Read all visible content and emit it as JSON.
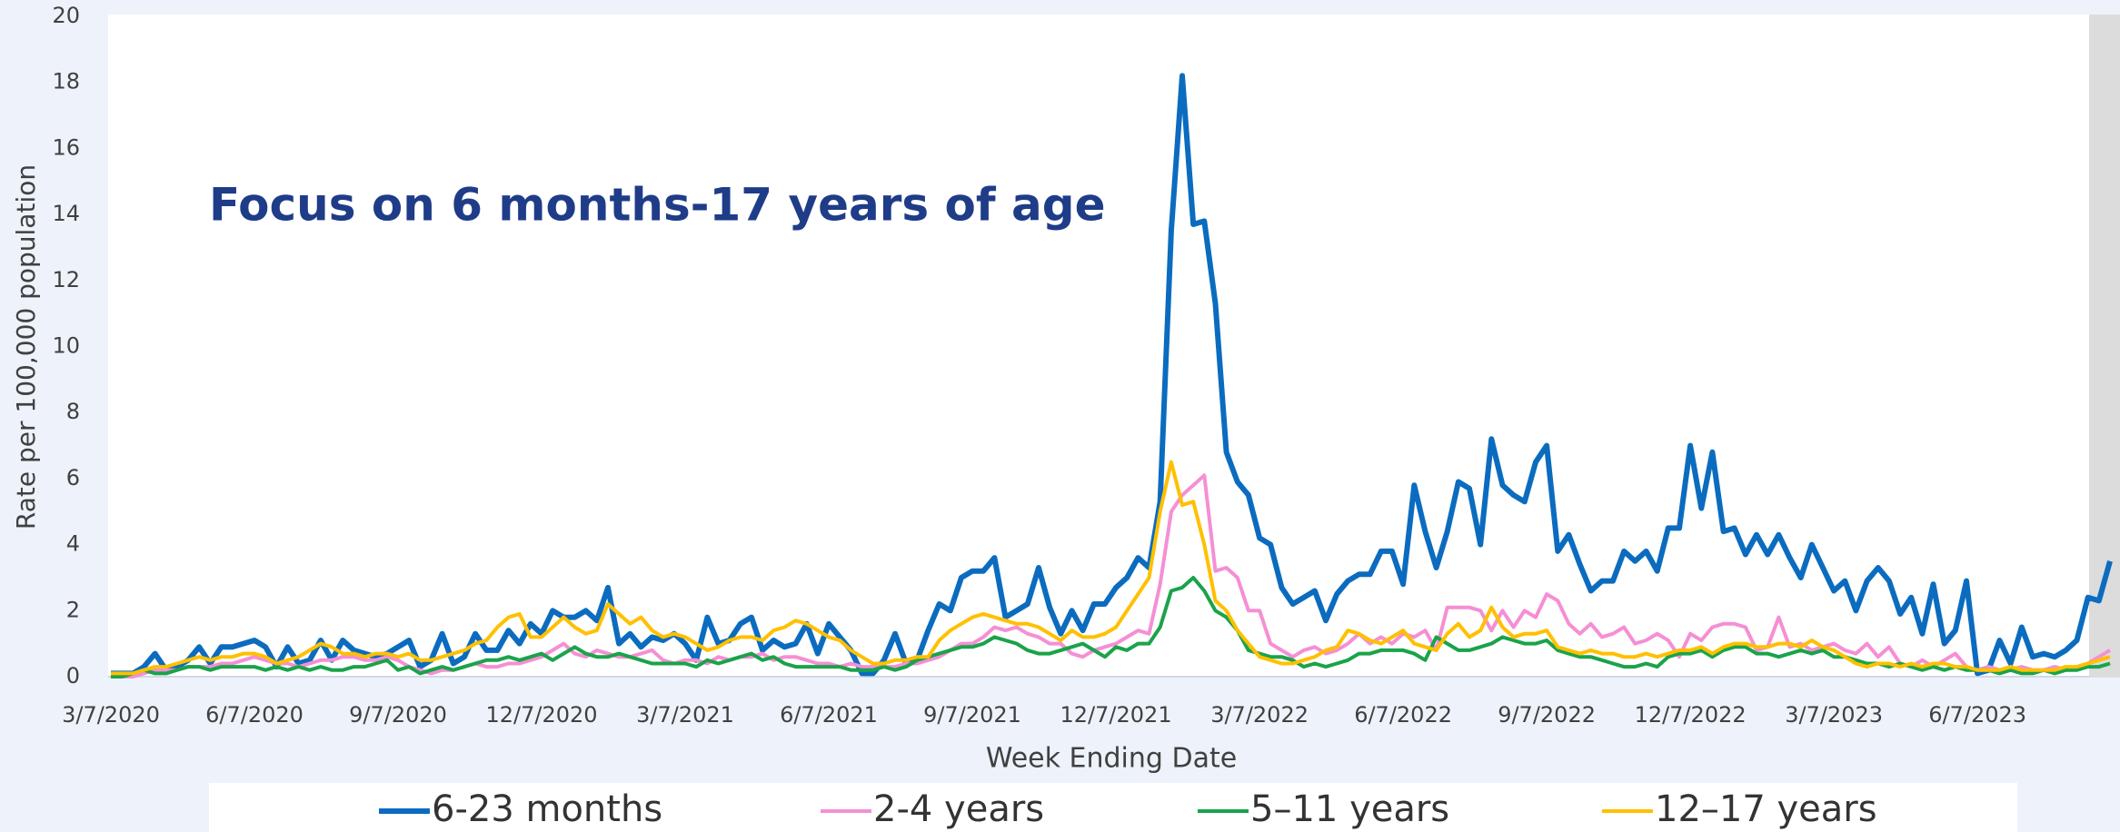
{
  "chart_data": {
    "type": "line",
    "title": "Focus on 6 months-17 years of age",
    "x_label": "Week Ending Date",
    "y_label": "Rate per 100,000 population",
    "ylim": [
      0,
      20
    ],
    "yticks": [
      0,
      2,
      4,
      6,
      8,
      10,
      12,
      14,
      16,
      18,
      20
    ],
    "legend": "bottom",
    "categories": [
      "3/7/2020",
      null,
      null,
      null,
      null,
      null,
      null,
      null,
      null,
      null,
      null,
      null,
      null,
      "6/7/2020",
      null,
      null,
      null,
      null,
      null,
      null,
      null,
      null,
      null,
      null,
      null,
      null,
      "9/7/2020",
      null,
      null,
      null,
      null,
      null,
      null,
      null,
      null,
      null,
      null,
      null,
      null,
      "12/7/2020",
      null,
      null,
      null,
      null,
      null,
      null,
      null,
      null,
      null,
      null,
      null,
      null,
      "3/7/2021",
      null,
      null,
      null,
      null,
      null,
      null,
      null,
      null,
      null,
      null,
      null,
      null,
      "6/7/2021",
      null,
      null,
      null,
      null,
      null,
      null,
      null,
      null,
      null,
      null,
      null,
      null,
      "9/7/2021",
      null,
      null,
      null,
      null,
      null,
      null,
      null,
      null,
      null,
      null,
      null,
      null,
      "12/7/2021",
      null,
      null,
      null,
      null,
      null,
      null,
      null,
      null,
      null,
      null,
      null,
      null,
      "3/7/2022",
      null,
      null,
      null,
      null,
      null,
      null,
      null,
      null,
      null,
      null,
      null,
      null,
      "6/7/2022",
      null,
      null,
      null,
      null,
      null,
      null,
      null,
      null,
      null,
      null,
      null,
      null,
      "9/7/2022",
      null,
      null,
      null,
      null,
      null,
      null,
      null,
      null,
      null,
      null,
      null,
      null,
      "12/7/2022",
      null,
      null,
      null,
      null,
      null,
      null,
      null,
      null,
      null,
      null,
      null,
      null,
      "3/7/2023",
      null,
      null,
      null,
      null,
      null,
      null,
      null,
      null,
      null,
      null,
      null,
      null,
      "6/7/2023",
      null,
      null,
      null,
      null,
      null,
      null,
      null,
      null,
      null,
      null,
      null,
      null
    ],
    "series": [
      {
        "name": "6-23 months",
        "color": "#0b6cbf",
        "width": 6,
        "values": [
          0.1,
          0.1,
          0.1,
          0.3,
          0.7,
          0.2,
          0.3,
          0.5,
          0.9,
          0.4,
          0.9,
          0.9,
          1.0,
          1.1,
          0.9,
          0.3,
          0.9,
          0.4,
          0.5,
          1.1,
          0.5,
          1.1,
          0.8,
          0.7,
          0.6,
          0.7,
          0.9,
          1.1,
          0.3,
          0.5,
          1.3,
          0.4,
          0.6,
          1.3,
          0.8,
          0.8,
          1.4,
          1.0,
          1.6,
          1.3,
          2.0,
          1.8,
          1.8,
          2.0,
          1.7,
          2.7,
          1.0,
          1.3,
          0.9,
          1.2,
          1.1,
          1.3,
          1.0,
          0.5,
          1.8,
          1.0,
          1.1,
          1.6,
          1.8,
          0.8,
          1.1,
          0.9,
          1.0,
          1.6,
          0.7,
          1.6,
          1.2,
          0.8,
          0.1,
          0.1,
          0.5,
          1.3,
          0.4,
          0.5,
          1.4,
          2.2,
          2.0,
          3.0,
          3.2,
          3.2,
          3.6,
          1.8,
          2.0,
          2.2,
          3.3,
          2.1,
          1.3,
          2.0,
          1.4,
          2.2,
          2.2,
          2.7,
          3.0,
          3.6,
          3.3,
          5.3,
          13.5,
          18.2,
          13.7,
          13.8,
          11.3,
          6.8,
          5.9,
          5.5,
          4.2,
          4.0,
          2.7,
          2.2,
          2.4,
          2.6,
          1.7,
          2.5,
          2.9,
          3.1,
          3.1,
          3.8,
          3.8,
          2.8,
          5.8,
          4.4,
          3.3,
          4.4,
          5.9,
          5.7,
          4.0,
          7.2,
          5.8,
          5.5,
          5.3,
          6.5,
          7.0,
          3.8,
          4.3,
          3.4,
          2.6,
          2.9,
          2.9,
          3.8,
          3.5,
          3.8,
          3.2,
          4.5,
          4.5,
          7.0,
          5.1,
          6.8,
          4.4,
          4.5,
          3.7,
          4.3,
          3.7,
          4.3,
          3.6,
          3.0,
          4.0,
          3.3,
          2.6,
          2.9,
          2.0,
          2.9,
          3.3,
          2.9,
          1.9,
          2.4,
          1.3,
          2.8,
          1.0,
          1.4,
          2.9,
          0.1,
          0.2,
          1.1,
          0.4,
          1.5,
          0.6,
          0.7,
          0.6,
          0.8,
          1.1,
          2.4,
          2.3,
          3.5
        ]
      },
      {
        "name": "2-4 years",
        "color": "#f58fd4",
        "width": 4,
        "values": [
          0,
          0,
          0,
          0.1,
          0.2,
          0.2,
          0.2,
          0.3,
          0.3,
          0.3,
          0.4,
          0.4,
          0.5,
          0.6,
          0.5,
          0.4,
          0.4,
          0.3,
          0.4,
          0.5,
          0.5,
          0.6,
          0.6,
          0.5,
          0.5,
          0.6,
          0.5,
          0.3,
          0.2,
          0.1,
          0.2,
          0.2,
          0.3,
          0.4,
          0.3,
          0.3,
          0.4,
          0.4,
          0.5,
          0.6,
          0.8,
          1.0,
          0.7,
          0.6,
          0.8,
          0.7,
          0.6,
          0.6,
          0.7,
          0.8,
          0.5,
          0.4,
          0.5,
          0.5,
          0.4,
          0.6,
          0.5,
          0.6,
          0.6,
          0.7,
          0.5,
          0.6,
          0.6,
          0.5,
          0.4,
          0.4,
          0.3,
          0.4,
          0.3,
          0.3,
          0.3,
          0.3,
          0.4,
          0.4,
          0.5,
          0.6,
          0.8,
          1.0,
          1.0,
          1.2,
          1.5,
          1.4,
          1.5,
          1.3,
          1.2,
          1.0,
          1.0,
          0.7,
          0.6,
          0.8,
          0.9,
          1.0,
          1.2,
          1.4,
          1.3,
          2.8,
          5.0,
          5.5,
          5.8,
          6.1,
          3.2,
          3.3,
          3.0,
          2.0,
          2.0,
          1.0,
          0.8,
          0.6,
          0.8,
          0.9,
          0.7,
          0.8,
          1.0,
          1.3,
          1.0,
          1.2,
          1.0,
          1.3,
          1.2,
          1.4,
          0.8,
          2.1,
          2.1,
          2.1,
          2.0,
          1.4,
          2.0,
          1.5,
          2.0,
          1.8,
          2.5,
          2.3,
          1.6,
          1.3,
          1.6,
          1.2,
          1.3,
          1.5,
          1.0,
          1.1,
          1.3,
          1.1,
          0.6,
          1.3,
          1.1,
          1.5,
          1.6,
          1.6,
          1.5,
          0.8,
          0.9,
          1.8,
          0.9,
          1.0,
          0.8,
          0.9,
          1.0,
          0.8,
          0.7,
          1.0,
          0.6,
          0.9,
          0.4,
          0.3,
          0.5,
          0.3,
          0.5,
          0.7,
          0.3,
          0.2,
          0.3,
          0.2,
          0.2,
          0.3,
          0.2,
          0.2,
          0.3,
          0.2,
          0.3,
          0.4,
          0.6,
          0.8
        ]
      },
      {
        "name": "5–11 years",
        "color": "#1aa34a",
        "width": 4,
        "values": [
          0,
          0,
          0.1,
          0.2,
          0.1,
          0.1,
          0.2,
          0.3,
          0.3,
          0.2,
          0.3,
          0.3,
          0.3,
          0.3,
          0.2,
          0.3,
          0.2,
          0.3,
          0.2,
          0.3,
          0.2,
          0.2,
          0.3,
          0.3,
          0.4,
          0.5,
          0.2,
          0.3,
          0.1,
          0.2,
          0.3,
          0.2,
          0.3,
          0.4,
          0.5,
          0.5,
          0.6,
          0.5,
          0.6,
          0.7,
          0.5,
          0.7,
          0.9,
          0.7,
          0.6,
          0.6,
          0.7,
          0.6,
          0.5,
          0.4,
          0.4,
          0.4,
          0.4,
          0.3,
          0.5,
          0.4,
          0.5,
          0.6,
          0.7,
          0.5,
          0.6,
          0.4,
          0.3,
          0.3,
          0.3,
          0.3,
          0.3,
          0.2,
          0.2,
          0.2,
          0.3,
          0.2,
          0.3,
          0.5,
          0.6,
          0.7,
          0.8,
          0.9,
          0.9,
          1.0,
          1.2,
          1.1,
          1.0,
          0.8,
          0.7,
          0.7,
          0.8,
          0.9,
          1.0,
          0.8,
          0.6,
          0.9,
          0.8,
          1.0,
          1.0,
          1.5,
          2.6,
          2.7,
          3.0,
          2.6,
          2.0,
          1.8,
          1.4,
          0.8,
          0.7,
          0.6,
          0.6,
          0.5,
          0.3,
          0.4,
          0.3,
          0.4,
          0.5,
          0.7,
          0.7,
          0.8,
          0.8,
          0.8,
          0.7,
          0.5,
          1.2,
          1.0,
          0.8,
          0.8,
          0.9,
          1.0,
          1.2,
          1.1,
          1.0,
          1.0,
          1.1,
          0.8,
          0.7,
          0.6,
          0.6,
          0.5,
          0.4,
          0.3,
          0.3,
          0.4,
          0.3,
          0.6,
          0.7,
          0.7,
          0.8,
          0.6,
          0.8,
          0.9,
          0.9,
          0.7,
          0.7,
          0.6,
          0.7,
          0.8,
          0.7,
          0.8,
          0.6,
          0.6,
          0.5,
          0.4,
          0.4,
          0.3,
          0.4,
          0.3,
          0.2,
          0.3,
          0.2,
          0.3,
          0.2,
          0.2,
          0.2,
          0.1,
          0.2,
          0.1,
          0.1,
          0.2,
          0.1,
          0.2,
          0.2,
          0.3,
          0.3,
          0.4
        ]
      },
      {
        "name": "12–17 years",
        "color": "#ffc000",
        "width": 4,
        "values": [
          0.1,
          0.1,
          0.1,
          0.2,
          0.3,
          0.3,
          0.4,
          0.5,
          0.6,
          0.5,
          0.6,
          0.6,
          0.7,
          0.7,
          0.6,
          0.4,
          0.5,
          0.6,
          0.8,
          1.0,
          0.9,
          0.7,
          0.7,
          0.6,
          0.7,
          0.7,
          0.6,
          0.7,
          0.5,
          0.5,
          0.6,
          0.7,
          0.8,
          1.0,
          1.1,
          1.5,
          1.8,
          1.9,
          1.2,
          1.2,
          1.5,
          1.8,
          1.5,
          1.3,
          1.4,
          2.2,
          1.9,
          1.6,
          1.8,
          1.4,
          1.2,
          1.3,
          1.2,
          1.0,
          0.8,
          0.9,
          1.1,
          1.2,
          1.2,
          1.1,
          1.4,
          1.5,
          1.7,
          1.6,
          1.4,
          1.2,
          1.1,
          0.8,
          0.6,
          0.4,
          0.4,
          0.5,
          0.5,
          0.6,
          0.6,
          1.1,
          1.4,
          1.6,
          1.8,
          1.9,
          1.8,
          1.7,
          1.6,
          1.6,
          1.5,
          1.3,
          1.1,
          1.4,
          1.2,
          1.2,
          1.3,
          1.5,
          2.0,
          2.5,
          3.0,
          5.0,
          6.5,
          5.2,
          5.3,
          4.0,
          2.3,
          2.0,
          1.4,
          1.0,
          0.6,
          0.5,
          0.4,
          0.4,
          0.5,
          0.6,
          0.8,
          0.9,
          1.4,
          1.3,
          1.1,
          1.0,
          1.2,
          1.4,
          1.0,
          0.9,
          0.8,
          1.3,
          1.6,
          1.2,
          1.4,
          2.1,
          1.5,
          1.2,
          1.3,
          1.3,
          1.4,
          0.9,
          0.8,
          0.7,
          0.8,
          0.7,
          0.7,
          0.6,
          0.6,
          0.7,
          0.6,
          0.7,
          0.8,
          0.8,
          0.9,
          0.7,
          0.9,
          1.0,
          1.0,
          0.9,
          0.9,
          1.0,
          1.0,
          0.9,
          1.1,
          0.9,
          0.8,
          0.6,
          0.4,
          0.3,
          0.4,
          0.4,
          0.3,
          0.4,
          0.3,
          0.4,
          0.4,
          0.3,
          0.3,
          0.2,
          0.2,
          0.2,
          0.3,
          0.2,
          0.2,
          0.2,
          0.2,
          0.3,
          0.3,
          0.4,
          0.5,
          0.6
        ]
      }
    ]
  }
}
